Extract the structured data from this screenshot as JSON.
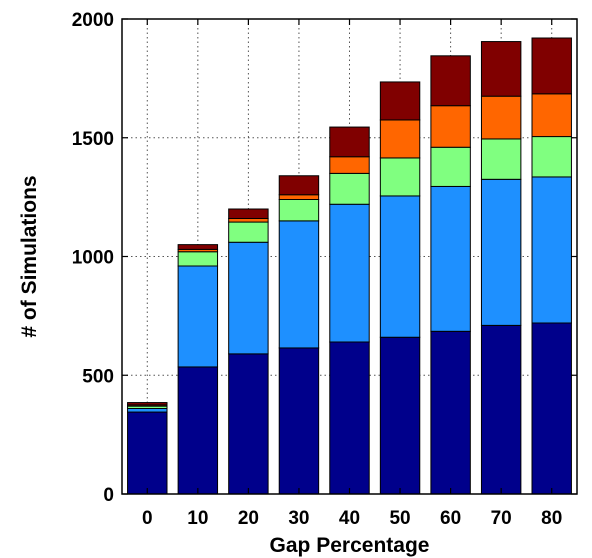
{
  "chart_data": {
    "type": "bar",
    "stacked": true,
    "title": "",
    "xlabel": "Gap Percentage",
    "ylabel": "# of Simulations",
    "categories": [
      "0",
      "10",
      "20",
      "30",
      "40",
      "50",
      "60",
      "70",
      "80"
    ],
    "ylim": [
      0,
      2000
    ],
    "yticks": [
      0,
      500,
      1000,
      1500,
      2000
    ],
    "grid": true,
    "grid_style": "dotted",
    "legend": "none",
    "series": [
      {
        "color": "#00008b",
        "values": [
          345,
          535,
          590,
          615,
          640,
          660,
          685,
          710,
          720
        ]
      },
      {
        "color": "#1e90ff",
        "values": [
          15,
          425,
          470,
          535,
          580,
          595,
          610,
          615,
          615
        ]
      },
      {
        "color": "#80ff80",
        "values": [
          10,
          60,
          85,
          90,
          130,
          160,
          165,
          170,
          170
        ]
      },
      {
        "color": "#ff6600",
        "values": [
          5,
          10,
          15,
          20,
          70,
          160,
          175,
          180,
          180
        ]
      },
      {
        "color": "#800000",
        "values": [
          10,
          20,
          40,
          80,
          125,
          160,
          210,
          230,
          235
        ]
      }
    ]
  }
}
